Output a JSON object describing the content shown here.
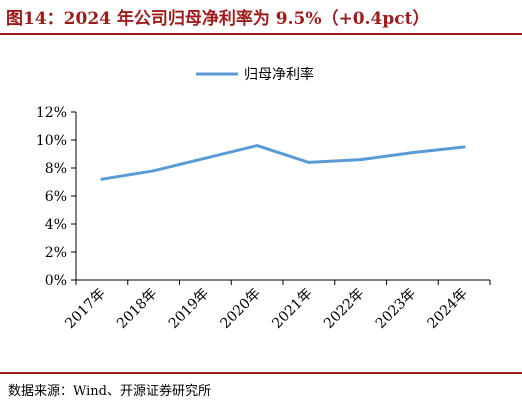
{
  "title": "图14：2024 年公司归母净利率为 9.5%（+0.4pct）",
  "source": "数据来源：Wind、开源证券研究所",
  "colors": {
    "title": "#9c1b1b",
    "line": "#5b9bd5",
    "axis": "#000000"
  },
  "chart_data": {
    "type": "line",
    "title": "图14：2024 年公司归母净利率为 9.5%（+0.4pct）",
    "xlabel": "",
    "ylabel": "",
    "categories": [
      "2017年",
      "2018年",
      "2019年",
      "2020年",
      "2021年",
      "2022年",
      "2023年",
      "2024年"
    ],
    "series": [
      {
        "name": "归母净利率",
        "values": [
          7.2,
          7.8,
          8.7,
          9.6,
          8.4,
          8.6,
          9.1,
          9.5
        ]
      }
    ],
    "ylim": [
      0,
      12
    ],
    "yticks": [
      0,
      2,
      4,
      6,
      8,
      10,
      12
    ],
    "ytick_labels": [
      "0%",
      "2%",
      "4%",
      "6%",
      "8%",
      "10%",
      "12%"
    ],
    "grid": false,
    "legend": "top-center"
  }
}
